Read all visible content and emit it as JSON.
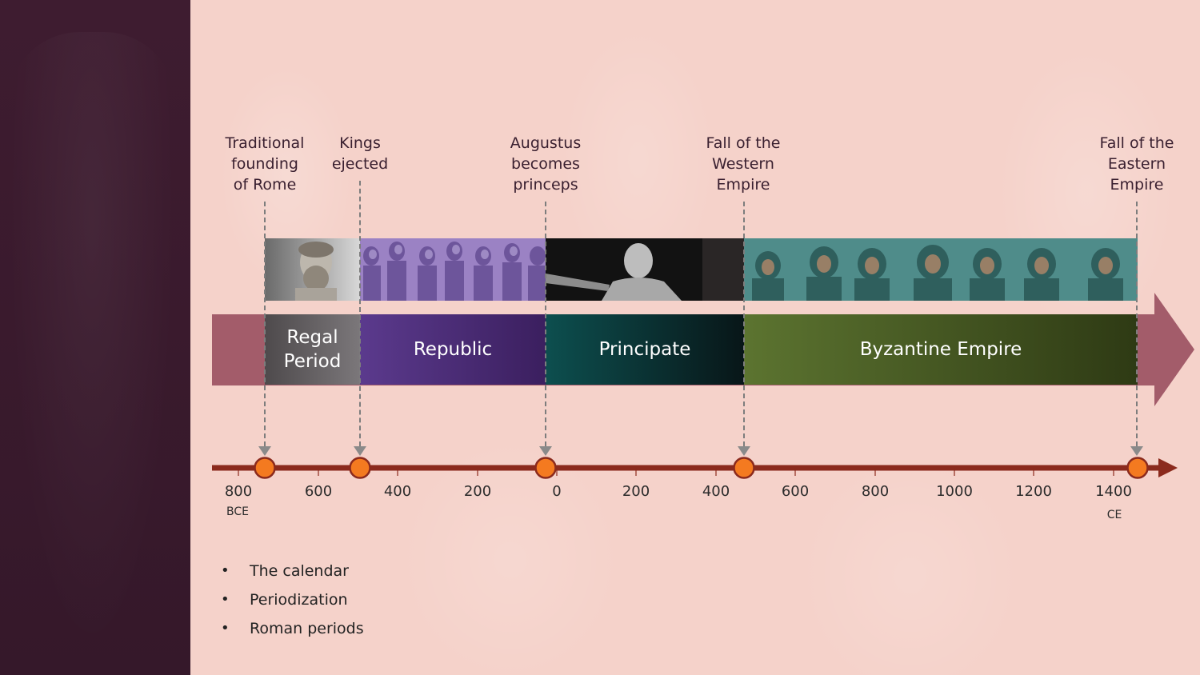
{
  "timeline": {
    "events": [
      {
        "label": "Traditional\nfounding\nof Rome"
      },
      {
        "label": "Kings\nejected"
      },
      {
        "label": "Augustus\nbecomes\nprinceps"
      },
      {
        "label": "Fall of the\nWestern\nEmpire"
      },
      {
        "label": "Fall of the\nEastern\nEmpire"
      }
    ],
    "eras": [
      {
        "label": "Regal\nPeriod",
        "color": "#5e5a5c"
      },
      {
        "label": "Republic",
        "color": "#5a3585"
      },
      {
        "label": "Principate",
        "color": "#0f4a4c"
      },
      {
        "label": "Byzantine Empire",
        "color": "#56682b"
      }
    ],
    "axis": {
      "ticks": [
        "800",
        "600",
        "400",
        "200",
        "0",
        "200",
        "400",
        "600",
        "800",
        "1000",
        "1200",
        "1400"
      ],
      "bce_label": "BCE",
      "ce_label": "CE"
    }
  },
  "bullets": [
    "The calendar",
    "Periodization",
    "Roman periods"
  ],
  "colors": {
    "background": "#f5d2ca",
    "sidebar": "#3e1c30",
    "arrow": "#a35c6a",
    "axis": "#8b2a1d",
    "event_marker": "#f47a20"
  },
  "icons": {
    "regal": "bearded-bust-portrait",
    "republic": "relief-figures",
    "principate": "augustus-statue",
    "byzantine": "mosaic-figures"
  }
}
